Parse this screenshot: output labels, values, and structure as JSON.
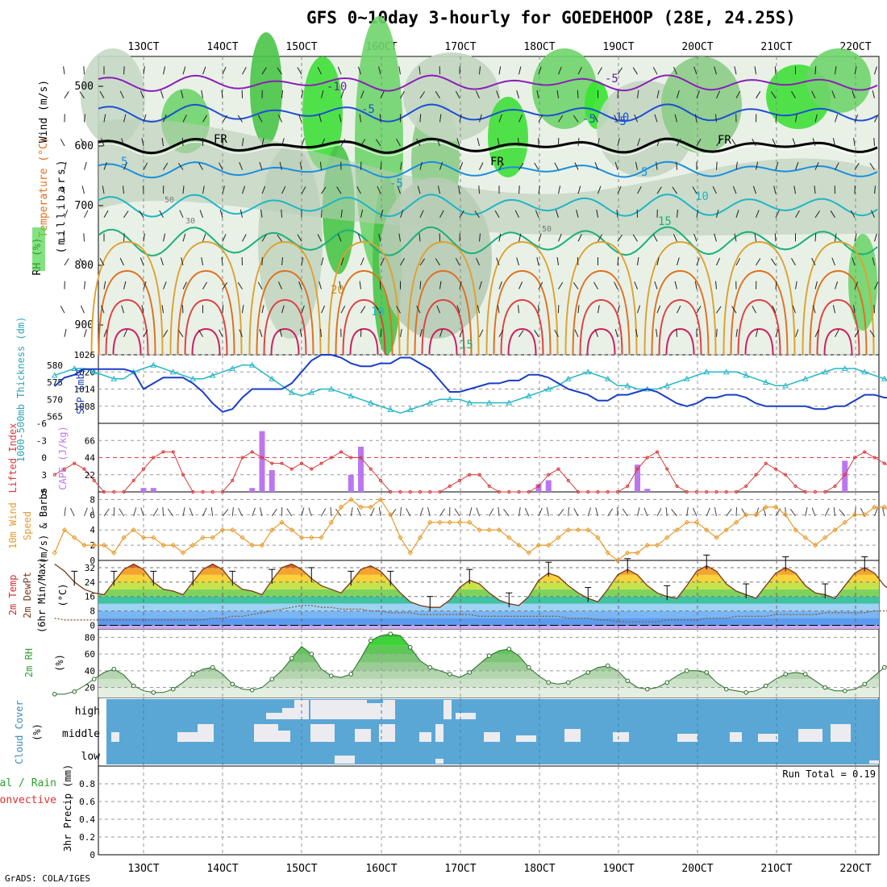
{
  "title": "GFS 0~10day 3-hourly for GOEDEHOOP (28E, 24.25S)",
  "credit": "GrADS: COLA/IGES",
  "x_ticks": [
    "13OCT",
    "14OCT",
    "15OCT",
    "16OCT",
    "17OCT",
    "18OCT",
    "19OCT",
    "20OCT",
    "21OCT",
    "22OCT"
  ],
  "panel_labels": {
    "upper": {
      "rh": "RH (%)",
      "temperature": "Temperature (°C)",
      "wind": "Wind (m/s)",
      "pressure": "(millibars)"
    },
    "slp": {
      "thickness": "1000-500mb Thickness (dm)",
      "slp": "SLP (mb)"
    },
    "cape": {
      "li": "Lifted Index",
      "cape": "CAPE (J/kg)"
    },
    "wind10": {
      "line1": "10m Wind",
      "line2": "Speed",
      "line3": "(m/s) & Barbs"
    },
    "temp2m": {
      "line1": "2m Temp",
      "line2": "2m DewPt",
      "line3": "(6hr Min/Max)",
      "unit": "(°C)"
    },
    "rh2m": {
      "line1": "2m RH",
      "unit": "(%)"
    },
    "cloud": {
      "line1": "Cloud Cover",
      "unit": "(%)",
      "high": "high",
      "middle": "middle",
      "low": "low"
    },
    "precip": {
      "line1": "Total / Rain",
      "line2": "Convective",
      "line3": "3hr Precip (mm)",
      "run_total": "Run Total = 0.19"
    }
  },
  "contour_labels": {
    "temps": [
      "-10",
      "-5",
      "FR",
      "-5",
      "5",
      "-5",
      "-10",
      "FR",
      "-5",
      "FR",
      "5",
      "-5",
      "10",
      "15",
      "20",
      "10",
      "15"
    ],
    "rh": [
      "50",
      "30",
      "50"
    ]
  },
  "chart_data": [
    {
      "type": "heatmap",
      "title": "Upper-air RH, Temperature and Wind",
      "ylabel": "(millibars)",
      "ylim": [
        950,
        450
      ],
      "yticks": [
        500,
        600,
        700,
        800,
        900
      ],
      "xlim": [
        0,
        10
      ],
      "temperature_contours_c": [
        -10,
        -5,
        0,
        5,
        10,
        15,
        20,
        25,
        30
      ],
      "freezing_level_mb": 600
    },
    {
      "type": "line",
      "title": "SLP and 1000-500mb Thickness",
      "series": [
        {
          "name": "SLP (mb)",
          "axis": "right",
          "ylim": [
            1002,
            1026
          ],
          "yticks": [
            1008,
            1014,
            1020,
            1026
          ],
          "values": [
            1015,
            1018,
            1019,
            1021,
            1021,
            1021,
            1021,
            1021,
            1020,
            1014,
            1016,
            1018,
            1018,
            1018,
            1016,
            1013,
            1009,
            1006,
            1007,
            1011,
            1014,
            1014,
            1014,
            1014,
            1016,
            1020,
            1024,
            1026,
            1026,
            1025,
            1023,
            1022,
            1022,
            1023,
            1023,
            1025,
            1025,
            1023,
            1021,
            1017,
            1013,
            1013,
            1014,
            1015,
            1016,
            1016,
            1017,
            1017,
            1019,
            1019,
            1018,
            1016,
            1014,
            1013,
            1012,
            1010,
            1010,
            1012,
            1012,
            1013,
            1014,
            1013,
            1011,
            1009,
            1008,
            1009,
            1011,
            1011,
            1012,
            1012,
            1011,
            1009,
            1008,
            1008,
            1008,
            1008,
            1008,
            1007,
            1007,
            1008,
            1008,
            1010,
            1012,
            1012,
            1011,
            1011,
            1009,
            1008,
            1008,
            1008,
            1009,
            1011,
            1013,
            1014,
            1014,
            1012,
            1011,
            1009,
            1008,
            1008,
            1010,
            1013,
            1014,
            1017,
            1020
          ]
        },
        {
          "name": "1000-500mb Thickness (dm)",
          "axis": "left",
          "ylim": [
            563,
            583
          ],
          "yticks": [
            565,
            570,
            575,
            580
          ],
          "values": [
            577,
            578,
            579,
            579,
            578,
            577,
            576,
            576,
            578,
            579,
            580,
            579,
            578,
            577,
            576,
            576,
            577,
            578,
            579,
            580,
            580,
            578,
            576,
            574,
            572,
            571,
            572,
            573,
            573,
            572,
            571,
            570,
            569,
            568,
            567,
            566,
            567,
            568,
            569,
            570,
            570,
            570,
            569,
            569,
            569,
            569,
            569,
            570,
            571,
            572,
            573,
            574,
            576,
            577,
            578,
            577,
            576,
            574,
            574,
            573,
            573,
            573,
            574,
            575,
            576,
            577,
            578,
            578,
            578,
            578,
            577,
            576,
            575,
            574,
            574,
            575,
            576,
            577,
            578,
            579,
            579,
            579,
            578,
            577,
            576,
            575,
            575,
            576,
            577,
            578,
            578,
            578,
            578,
            577,
            576,
            575,
            575,
            577,
            579,
            580,
            580,
            578,
            575,
            573,
            572
          ]
        }
      ],
      "x": "3-hourly steps from 12OCT18Z"
    },
    {
      "type": "bar",
      "title": "Lifted Index and CAPE",
      "series": [
        {
          "name": "CAPE (J/kg)",
          "yticks": [
            22,
            44,
            66
          ],
          "bars": [
            {
              "t": 9,
              "v": 5
            },
            {
              "t": 10,
              "v": 5
            },
            {
              "t": 20,
              "v": 5
            },
            {
              "t": 21,
              "v": 78
            },
            {
              "t": 22,
              "v": 28
            },
            {
              "t": 30,
              "v": 22
            },
            {
              "t": 31,
              "v": 58
            },
            {
              "t": 49,
              "v": 10
            },
            {
              "t": 50,
              "v": 15
            },
            {
              "t": 59,
              "v": 35
            },
            {
              "t": 60,
              "v": 4
            },
            {
              "t": 80,
              "v": 40
            }
          ]
        },
        {
          "name": "Lifted Index",
          "yticks": [
            -6,
            -3,
            0,
            3,
            6
          ],
          "ylim": [
            6,
            -6
          ],
          "values": [
            3,
            2,
            1,
            2,
            4,
            6,
            6,
            6,
            4,
            2,
            0,
            -1,
            -1,
            3,
            6,
            6,
            6,
            6,
            4,
            0,
            -1,
            0,
            1,
            1,
            2,
            1,
            2,
            1,
            0,
            -1,
            0,
            0,
            2,
            4,
            6,
            6,
            6,
            6,
            6,
            6,
            5,
            4,
            3,
            3,
            5,
            6,
            6,
            6,
            6,
            5,
            3,
            2,
            4,
            6,
            6,
            6,
            6,
            6,
            5,
            2,
            0,
            -1,
            2,
            5,
            6,
            6,
            6,
            6,
            6,
            6,
            5,
            3,
            1,
            2,
            3,
            5,
            6,
            6,
            6,
            5,
            3,
            0,
            -1,
            0,
            1,
            2,
            2,
            4,
            4,
            3,
            2,
            1,
            0,
            0,
            1,
            2,
            2,
            3,
            4,
            5,
            3,
            2,
            3,
            4,
            5
          ]
        }
      ]
    },
    {
      "type": "line",
      "title": "10m Wind Speed and Barbs",
      "ylabel": "(m/s)",
      "ylim": [
        0,
        9
      ],
      "yticks": [
        0,
        2,
        4,
        6,
        8
      ],
      "series": [
        {
          "name": "10m Wind Speed",
          "values": [
            1,
            4,
            3,
            2,
            2,
            2,
            1,
            3,
            4,
            3,
            3,
            2,
            2,
            1,
            2,
            3,
            3,
            4,
            4,
            3,
            2,
            2,
            4,
            5,
            4,
            3,
            3,
            3,
            5,
            7,
            8,
            7,
            7,
            8,
            6,
            3,
            1,
            3,
            5,
            5,
            5,
            5,
            5,
            4,
            4,
            4,
            3,
            2,
            1,
            2,
            2,
            3,
            4,
            4,
            4,
            3,
            1,
            0,
            1,
            1,
            2,
            2,
            3,
            4,
            5,
            5,
            4,
            3,
            4,
            5,
            6,
            6,
            7,
            7,
            6,
            4,
            3,
            2,
            3,
            4,
            5,
            6,
            6,
            7,
            7,
            6,
            4,
            3,
            3,
            4,
            5,
            6,
            7,
            7,
            6,
            5,
            3,
            2,
            2,
            4,
            5,
            4,
            3,
            4,
            6
          ]
        }
      ]
    },
    {
      "type": "area",
      "title": "2m Temperature and Dew Point (6hr Min/Max)",
      "ylabel": "(°C)",
      "ylim": [
        -2,
        36
      ],
      "yticks": [
        0,
        8,
        16,
        24,
        32
      ],
      "series": [
        {
          "name": "2m Temp",
          "values": [
            34,
            30,
            24,
            20,
            18,
            17,
            24,
            31,
            34,
            31,
            24,
            20,
            19,
            17,
            24,
            31,
            34,
            31,
            24,
            20,
            19,
            17,
            25,
            32,
            34,
            31,
            26,
            22,
            20,
            18,
            24,
            31,
            33,
            30,
            24,
            18,
            13,
            11,
            10,
            10,
            14,
            21,
            25,
            23,
            18,
            14,
            12,
            11,
            16,
            25,
            29,
            27,
            22,
            18,
            15,
            13,
            20,
            28,
            31,
            28,
            22,
            18,
            16,
            15,
            22,
            30,
            33,
            30,
            23,
            19,
            17,
            15,
            22,
            29,
            32,
            29,
            22,
            18,
            17,
            15,
            22,
            29,
            32,
            29,
            22,
            18,
            17,
            15,
            22,
            29,
            32,
            29,
            23,
            19,
            18,
            16,
            22,
            29,
            31,
            29,
            23,
            18,
            15,
            13,
            16
          ]
        },
        {
          "name": "2m DewPt",
          "values": [
            4,
            3,
            3,
            3,
            3,
            3,
            3,
            3,
            3,
            3,
            3,
            3,
            3,
            3,
            3,
            3,
            4,
            4,
            5,
            5,
            6,
            7,
            8,
            9,
            10,
            11,
            11,
            10,
            10,
            9,
            9,
            9,
            8,
            8,
            7,
            7,
            7,
            6,
            6,
            6,
            6,
            6,
            6,
            5,
            5,
            5,
            5,
            5,
            5,
            5,
            5,
            5,
            4,
            4,
            4,
            3,
            3,
            2,
            2,
            2,
            2,
            2,
            3,
            3,
            3,
            3,
            4,
            4,
            4,
            5,
            5,
            5,
            5,
            6,
            6,
            6,
            6,
            6,
            7,
            7,
            7,
            7,
            7,
            8,
            8,
            8,
            9,
            9,
            9,
            9,
            9,
            10,
            10,
            10,
            9,
            8,
            8,
            8,
            8,
            9,
            10,
            10,
            11,
            11,
            12
          ]
        }
      ]
    },
    {
      "type": "area",
      "title": "2m Relative Humidity",
      "ylabel": "(%)",
      "ylim": [
        8,
        90
      ],
      "yticks": [
        20,
        40,
        60,
        80
      ],
      "series": [
        {
          "name": "2m RH",
          "values": [
            12,
            12,
            15,
            22,
            30,
            38,
            42,
            35,
            22,
            16,
            14,
            14,
            18,
            26,
            36,
            42,
            44,
            36,
            24,
            18,
            17,
            20,
            30,
            40,
            55,
            69,
            60,
            42,
            34,
            32,
            36,
            55,
            76,
            82,
            84,
            82,
            68,
            52,
            44,
            40,
            36,
            32,
            38,
            48,
            58,
            64,
            66,
            58,
            44,
            34,
            26,
            24,
            26,
            32,
            38,
            44,
            46,
            40,
            28,
            20,
            18,
            20,
            26,
            34,
            40,
            40,
            38,
            26,
            18,
            16,
            14,
            16,
            22,
            30,
            36,
            38,
            36,
            28,
            20,
            16,
            16,
            18,
            24,
            34,
            44,
            50,
            46,
            36,
            26,
            22,
            22,
            28,
            38,
            48,
            54,
            52,
            40,
            28,
            20,
            18,
            22,
            36,
            56,
            78,
            60
          ]
        }
      ]
    },
    {
      "type": "heatmap",
      "title": "Cloud Cover",
      "ylabel": "(%)",
      "levels": [
        "low",
        "middle",
        "high"
      ],
      "note": "blue = clear, light grey = cloud fraction"
    },
    {
      "type": "bar",
      "title": "3hr Precip",
      "ylabel": "3hr Precip (mm)",
      "ylim": [
        0,
        1.0
      ],
      "yticks": [
        0,
        0.2,
        0.4,
        0.6,
        0.8
      ],
      "run_total": 0.19,
      "series": [
        {
          "name": "Total / Rain",
          "bars": [
            {
              "t": 97,
              "v": 0.13
            },
            {
              "t": 98,
              "v": 0.06
            }
          ]
        },
        {
          "name": "Convective",
          "bars": [
            {
              "t": 97,
              "v": 0.1
            },
            {
              "t": 98,
              "v": 0.05
            }
          ]
        }
      ]
    }
  ]
}
